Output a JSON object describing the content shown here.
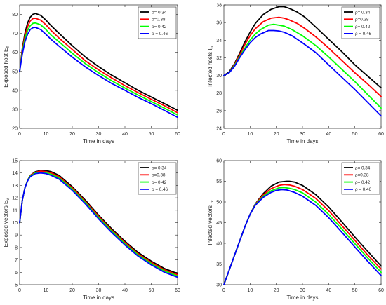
{
  "chart_data": [
    {
      "type": "line",
      "xlabel": "Time in days",
      "ylabel": "Exposed host E",
      "ylabel_sub": "h",
      "xlim": [
        0,
        60
      ],
      "ylim": [
        20,
        85
      ],
      "xticks": [
        "0",
        "10",
        "20",
        "30",
        "40",
        "50",
        "60"
      ],
      "yticks": [
        "20",
        "30",
        "40",
        "50",
        "60",
        "70",
        "80"
      ],
      "grid": false,
      "legend_position": "top-right",
      "series": [
        {
          "name": "ρ= 0.34",
          "color": "#000000",
          "x": [
            0,
            1,
            2,
            3,
            4,
            5,
            6,
            8,
            10,
            12,
            15,
            20,
            25,
            30,
            35,
            40,
            45,
            50,
            55,
            60
          ],
          "y": [
            50,
            62,
            70,
            75.5,
            78.5,
            80,
            80.5,
            79.5,
            77,
            74,
            70,
            63.5,
            57.5,
            52.5,
            48,
            44,
            40,
            36.5,
            33,
            29.5
          ]
        },
        {
          "name": "ρ=0.38",
          "color": "#ff0000",
          "x": [
            0,
            1,
            2,
            3,
            4,
            5,
            6,
            8,
            10,
            12,
            15,
            20,
            25,
            30,
            35,
            40,
            45,
            50,
            55,
            60
          ],
          "y": [
            50,
            61,
            68.5,
            73.5,
            76.5,
            77.8,
            78,
            77,
            74.5,
            71.5,
            67.5,
            61.5,
            55.5,
            50.8,
            46.5,
            42.5,
            38.8,
            35.3,
            31.9,
            28.2
          ]
        },
        {
          "name": "ρ= 0.42",
          "color": "#00ff00",
          "x": [
            0,
            1,
            2,
            3,
            4,
            5,
            6,
            8,
            10,
            12,
            15,
            20,
            25,
            30,
            35,
            40,
            45,
            50,
            55,
            60
          ],
          "y": [
            50,
            60,
            67,
            71.5,
            74,
            75.3,
            75.5,
            74.5,
            72,
            69,
            65.5,
            59.5,
            54,
            49.3,
            45,
            41.2,
            37.5,
            34.1,
            30.6,
            27
          ]
        },
        {
          "name": "ρ = 0.46",
          "color": "#0000ff",
          "x": [
            0,
            1,
            2,
            3,
            4,
            5,
            6,
            8,
            10,
            12,
            15,
            20,
            25,
            30,
            35,
            40,
            45,
            50,
            55,
            60
          ],
          "y": [
            50,
            59,
            65.5,
            69.5,
            72,
            73,
            73.2,
            72,
            69.5,
            66.8,
            63.2,
            57.5,
            52.3,
            47.8,
            43.6,
            40,
            36.3,
            33,
            29.4,
            25.8
          ]
        }
      ]
    },
    {
      "type": "line",
      "xlabel": "Time in days",
      "ylabel": "Infected  hosts  I",
      "ylabel_sub": "h",
      "xlim": [
        0,
        60
      ],
      "ylim": [
        24,
        38
      ],
      "xticks": [
        "0",
        "10",
        "20",
        "30",
        "40",
        "50",
        "60"
      ],
      "yticks": [
        "24",
        "26",
        "28",
        "30",
        "32",
        "34",
        "36",
        "38"
      ],
      "grid": false,
      "legend_position": "top-right",
      "series": [
        {
          "name": "ρ= 0.34",
          "color": "#000000",
          "x": [
            0,
            2,
            4,
            6,
            8,
            10,
            12,
            15,
            18,
            21,
            23,
            25,
            28,
            31,
            35,
            40,
            45,
            50,
            55,
            60
          ],
          "y": [
            30,
            30.4,
            31.3,
            32.5,
            33.8,
            34.9,
            35.9,
            36.9,
            37.5,
            37.8,
            37.8,
            37.6,
            37.2,
            36.6,
            35.5,
            34.1,
            32.7,
            31.2,
            29.9,
            28.6
          ]
        },
        {
          "name": "ρ=0.38",
          "color": "#ff0000",
          "x": [
            0,
            2,
            4,
            6,
            8,
            10,
            12,
            15,
            18,
            21,
            23,
            25,
            28,
            31,
            35,
            40,
            45,
            50,
            55,
            60
          ],
          "y": [
            30,
            30.3,
            31.2,
            32.3,
            33.5,
            34.5,
            35.3,
            36.1,
            36.5,
            36.6,
            36.5,
            36.3,
            35.9,
            35.3,
            34.4,
            33.1,
            31.7,
            30.3,
            29,
            27.6
          ]
        },
        {
          "name": "ρ= 0.42",
          "color": "#00ff00",
          "x": [
            0,
            2,
            4,
            6,
            8,
            10,
            12,
            14,
            17,
            19,
            21,
            23,
            26,
            30,
            35,
            40,
            45,
            50,
            55,
            60
          ],
          "y": [
            30,
            30.3,
            31.1,
            32.1,
            33.1,
            34,
            34.7,
            35.2,
            35.7,
            35.8,
            35.7,
            35.6,
            35.2,
            34.5,
            33.4,
            32.1,
            30.7,
            29.3,
            27.8,
            26.3
          ]
        },
        {
          "name": "ρ = 0.46",
          "color": "#0000ff",
          "x": [
            0,
            2,
            4,
            6,
            8,
            10,
            12,
            14,
            17,
            19,
            21,
            23,
            26,
            30,
            35,
            40,
            45,
            50,
            55,
            60
          ],
          "y": [
            30,
            30.3,
            31,
            32,
            32.9,
            33.7,
            34.3,
            34.7,
            35.1,
            35.1,
            35.05,
            34.9,
            34.5,
            33.7,
            32.6,
            31.2,
            29.8,
            28.4,
            26.9,
            25.4
          ]
        }
      ]
    },
    {
      "type": "line",
      "xlabel": "Time in days",
      "ylabel": "Exposed vectors E",
      "ylabel_sub": "v",
      "xlim": [
        0,
        60
      ],
      "ylim": [
        5,
        15
      ],
      "xticks": [
        "0",
        "10",
        "20",
        "30",
        "40",
        "50",
        "60"
      ],
      "yticks": [
        "5",
        "6",
        "7",
        "8",
        "9",
        "10",
        "11",
        "12",
        "13",
        "14",
        "15"
      ],
      "grid": false,
      "legend_position": "top-right",
      "series": [
        {
          "name": "ρ= 0.34",
          "color": "#000000",
          "x": [
            0,
            1,
            2,
            3,
            4,
            6,
            8,
            10,
            12,
            15,
            20,
            25,
            30,
            35,
            40,
            45,
            50,
            55,
            60
          ],
          "y": [
            10,
            11.8,
            12.8,
            13.4,
            13.8,
            14.1,
            14.2,
            14.2,
            14.1,
            13.8,
            12.9,
            11.8,
            10.6,
            9.5,
            8.5,
            7.6,
            6.9,
            6.3,
            5.9
          ]
        },
        {
          "name": "ρ=0.38",
          "color": "#ff0000",
          "x": [
            0,
            1,
            2,
            3,
            4,
            6,
            8,
            10,
            12,
            15,
            20,
            25,
            30,
            35,
            40,
            45,
            50,
            55,
            60
          ],
          "y": [
            10,
            11.8,
            12.8,
            13.4,
            13.8,
            14.05,
            14.15,
            14.1,
            14,
            13.7,
            12.8,
            11.7,
            10.5,
            9.4,
            8.4,
            7.5,
            6.8,
            6.2,
            5.8
          ]
        },
        {
          "name": "ρ= 0.42",
          "color": "#00ff00",
          "x": [
            0,
            1,
            2,
            3,
            4,
            6,
            8,
            10,
            12,
            15,
            20,
            25,
            30,
            35,
            40,
            45,
            50,
            55,
            60
          ],
          "y": [
            10,
            11.8,
            12.8,
            13.4,
            13.75,
            14,
            14.05,
            14,
            13.9,
            13.6,
            12.7,
            11.6,
            10.4,
            9.3,
            8.3,
            7.4,
            6.7,
            6.1,
            5.7
          ]
        },
        {
          "name": "ρ = 0.46",
          "color": "#0000ff",
          "x": [
            0,
            1,
            2,
            3,
            4,
            6,
            8,
            10,
            12,
            15,
            20,
            25,
            30,
            35,
            40,
            45,
            50,
            55,
            60
          ],
          "y": [
            10,
            11.8,
            12.8,
            13.35,
            13.7,
            13.95,
            14,
            13.95,
            13.8,
            13.5,
            12.6,
            11.5,
            10.3,
            9.2,
            8.2,
            7.3,
            6.6,
            6,
            5.6
          ]
        }
      ]
    },
    {
      "type": "line",
      "xlabel": "Time in days",
      "ylabel": "Infected vectors  I",
      "ylabel_sub": "v",
      "xlim": [
        0,
        60
      ],
      "ylim": [
        30,
        60
      ],
      "xticks": [
        "0",
        "10",
        "20",
        "30",
        "40",
        "50",
        "60"
      ],
      "yticks": [
        "30",
        "35",
        "40",
        "45",
        "50",
        "55",
        "60"
      ],
      "grid": false,
      "legend_position": "top-right",
      "series": [
        {
          "name": "ρ= 0.34",
          "color": "#000000",
          "x": [
            0,
            2,
            4,
            6,
            8,
            10,
            12,
            15,
            18,
            21,
            24,
            25,
            27,
            30,
            35,
            40,
            45,
            50,
            55,
            60
          ],
          "y": [
            30,
            33.5,
            37,
            40.5,
            44,
            47,
            49.5,
            52,
            53.8,
            54.8,
            55,
            55,
            54.8,
            54,
            51.8,
            48.8,
            45.2,
            41.5,
            38,
            34.5
          ]
        },
        {
          "name": "ρ=0.38",
          "color": "#ff0000",
          "x": [
            0,
            2,
            4,
            6,
            8,
            10,
            12,
            15,
            18,
            21,
            23,
            25,
            27,
            30,
            35,
            40,
            45,
            50,
            55,
            60
          ],
          "y": [
            30,
            33.5,
            37,
            40.5,
            44,
            47,
            49.4,
            51.7,
            53.2,
            54,
            54.2,
            54.1,
            53.8,
            53,
            50.9,
            47.9,
            44.3,
            40.7,
            37.1,
            33.8
          ]
        },
        {
          "name": "ρ= 0.42",
          "color": "#00ff00",
          "x": [
            0,
            2,
            4,
            6,
            8,
            10,
            12,
            15,
            18,
            21,
            23,
            25,
            27,
            30,
            35,
            40,
            45,
            50,
            55,
            60
          ],
          "y": [
            30,
            33.5,
            37,
            40.5,
            44,
            47,
            49.3,
            51.4,
            52.7,
            53.4,
            53.5,
            53.3,
            53,
            52.2,
            50,
            47,
            43.5,
            39.9,
            36.4,
            33
          ]
        },
        {
          "name": "ρ = 0.46",
          "color": "#0000ff",
          "x": [
            0,
            2,
            4,
            6,
            8,
            10,
            12,
            15,
            18,
            20,
            22,
            24,
            27,
            30,
            35,
            40,
            45,
            50,
            55,
            60
          ],
          "y": [
            30,
            33.5,
            37,
            40.5,
            44,
            47,
            49.2,
            51.1,
            52.3,
            52.8,
            53,
            52.9,
            52.3,
            51.4,
            49.2,
            46.2,
            42.7,
            39.1,
            35.6,
            32.2
          ]
        }
      ]
    }
  ]
}
